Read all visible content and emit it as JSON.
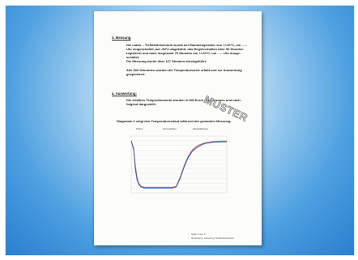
{
  "document": {
    "section3": {
      "heading": "3. Messung",
      "lines": [
        "Die Labor – Tiefstkühlschrank wurde bei Raumtemperatur von +/-20°C, um ......",
        "Uhr eingeschaltet, auf -80°C abgekühlt, das Regelverhalten über 50 Stunden",
        "registriert und nach insgesamt 75 Stunden um +/-20°C, um ...... Uhr ausge-",
        "schaltet.",
        "Die Messung wurde über 117 Stunden durchgeführt.",
        "",
        "Alle 300 Sekunden wurden die Temperaturwerte erfaßt und zur Auswertung",
        "gespeichert."
      ]
    },
    "section4": {
      "heading": "4. Auswertung:",
      "lines": [
        "Die erfaßten Temperaturwerte wurden in MS-Excel übernommen und nach-",
        "folgend dargestellt."
      ]
    },
    "diagram_caption": "Diagramm 1 zeigt den Temperaturverlauf während der gesamten Messung.",
    "watermark": "MUSTER"
  },
  "chart_data": {
    "type": "line",
    "legend": [
      "Fühler",
      "Sensorfühler",
      "Messfühlertop"
    ],
    "series": [
      {
        "name": "Fühler",
        "color": "#2f5fc4",
        "x": [
          0,
          3,
          5,
          7,
          9,
          12,
          16,
          50,
          55,
          60,
          65,
          70,
          75,
          80,
          85,
          90,
          100,
          117
        ],
        "y": [
          20,
          0,
          -40,
          -62,
          -72,
          -78,
          -80,
          -80,
          -78,
          -60,
          -35,
          -15,
          -2,
          5,
          10,
          14,
          17,
          18
        ]
      },
      {
        "name": "Sensorfühler",
        "color": "#c5423a",
        "x": [
          0,
          3,
          5,
          7,
          9,
          12,
          16,
          50,
          55,
          60,
          65,
          70,
          75,
          80,
          85,
          90,
          100,
          117
        ],
        "y": [
          20,
          3,
          -34,
          -58,
          -70,
          -77,
          -79,
          -79,
          -77,
          -58,
          -33,
          -13,
          0,
          7,
          12,
          15,
          18,
          19
        ]
      },
      {
        "name": "Messfühlertop",
        "color": "#b6b6b6",
        "x": [
          0,
          3,
          5,
          7,
          9,
          12,
          16,
          50,
          55,
          60,
          65,
          70,
          75,
          80,
          85,
          90,
          100,
          117
        ],
        "y": [
          20,
          6,
          -28,
          -54,
          -68,
          -76,
          -78,
          -78,
          -76,
          -55,
          -30,
          -11,
          2,
          9,
          13,
          16,
          19,
          20
        ]
      }
    ],
    "xlim": [
      0,
      117
    ],
    "ylim": [
      -90,
      30
    ],
    "grid": true,
    "legend_position": "top"
  },
  "footer": {
    "page": "Seite 2 von 2",
    "ref": "Raumtemp. Messung Tiefstkühlschrank"
  }
}
